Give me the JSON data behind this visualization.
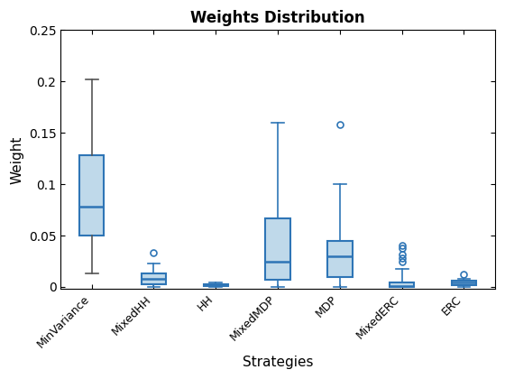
{
  "title": "Weights Distribution",
  "xlabel": "Strategies",
  "ylabel": "Weight",
  "categories": [
    "MinVariance",
    "MixedHH",
    "HH",
    "MixedMDP",
    "MDP",
    "MixedERC",
    "ERC"
  ],
  "ylim": [
    -0.002,
    0.25
  ],
  "yticks": [
    0,
    0.05,
    0.1,
    0.15,
    0.2,
    0.25
  ],
  "box_facecolor": "#BFD9EA",
  "box_edgecolor": "#2E75B6",
  "median_color": "#2E75B6",
  "whisker_color_dark": "#555555",
  "whisker_color_blue": "#2E75B6",
  "flier_color": "#2E75B6",
  "cap_color_dark": "#555555",
  "cap_color_blue": "#2E75B6",
  "boxes": [
    {
      "q1": 0.05,
      "median": 0.078,
      "q3": 0.128,
      "whislo": 0.013,
      "whishi": 0.202,
      "fliers": [],
      "whisker_dark": true
    },
    {
      "q1": 0.003,
      "median": 0.008,
      "q3": 0.013,
      "whislo": 0.0,
      "whishi": 0.023,
      "fliers": [
        0.033
      ],
      "whisker_dark": false
    },
    {
      "q1": 0.001,
      "median": 0.002,
      "q3": 0.003,
      "whislo": 0.0,
      "whishi": 0.004,
      "fliers": [],
      "whisker_dark": false
    },
    {
      "q1": 0.007,
      "median": 0.025,
      "q3": 0.067,
      "whislo": 0.0,
      "whishi": 0.16,
      "fliers": [],
      "whisker_dark": false
    },
    {
      "q1": 0.01,
      "median": 0.03,
      "q3": 0.045,
      "whislo": 0.0,
      "whishi": 0.1,
      "fliers": [
        0.158
      ],
      "whisker_dark": false
    },
    {
      "q1": 0.0,
      "median": 0.001,
      "q3": 0.004,
      "whislo": 0.0,
      "whishi": 0.018,
      "fliers": [
        0.025,
        0.028,
        0.032,
        0.038,
        0.04
      ],
      "whisker_dark": false
    },
    {
      "q1": 0.002,
      "median": 0.004,
      "q3": 0.006,
      "whislo": 0.0,
      "whishi": 0.008,
      "fliers": [
        0.012
      ],
      "whisker_dark": false
    }
  ]
}
